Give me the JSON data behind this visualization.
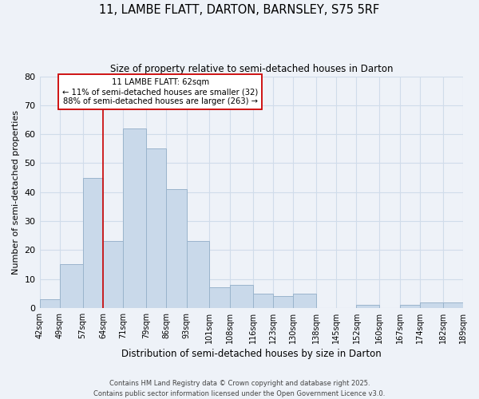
{
  "title": "11, LAMBE FLATT, DARTON, BARNSLEY, S75 5RF",
  "subtitle": "Size of property relative to semi-detached houses in Darton",
  "xlabel": "Distribution of semi-detached houses by size in Darton",
  "ylabel": "Number of semi-detached properties",
  "bins": [
    42,
    49,
    57,
    64,
    71,
    79,
    86,
    93,
    101,
    108,
    116,
    123,
    130,
    138,
    145,
    152,
    160,
    167,
    174,
    182,
    189
  ],
  "counts": [
    3,
    15,
    45,
    23,
    62,
    55,
    41,
    23,
    7,
    8,
    5,
    4,
    5,
    0,
    0,
    1,
    0,
    1,
    2,
    2
  ],
  "tick_labels": [
    "42sqm",
    "49sqm",
    "57sqm",
    "64sqm",
    "71sqm",
    "79sqm",
    "86sqm",
    "93sqm",
    "101sqm",
    "108sqm",
    "116sqm",
    "123sqm",
    "130sqm",
    "138sqm",
    "145sqm",
    "152sqm",
    "160sqm",
    "167sqm",
    "174sqm",
    "182sqm",
    "189sqm"
  ],
  "bar_color": "#c9d9ea",
  "bar_edge_color": "#9ab4cc",
  "property_line_x": 64,
  "property_line_color": "#cc0000",
  "annotation_title": "11 LAMBE FLATT: 62sqm",
  "annotation_line1": "← 11% of semi-detached houses are smaller (32)",
  "annotation_line2": "88% of semi-detached houses are larger (263) →",
  "annotation_box_color": "#ffffff",
  "annotation_box_edge": "#cc0000",
  "ylim": [
    0,
    80
  ],
  "yticks": [
    0,
    10,
    20,
    30,
    40,
    50,
    60,
    70,
    80
  ],
  "grid_color": "#d0dcea",
  "background_color": "#eef2f8",
  "footer_line1": "Contains HM Land Registry data © Crown copyright and database right 2025.",
  "footer_line2": "Contains public sector information licensed under the Open Government Licence v3.0."
}
